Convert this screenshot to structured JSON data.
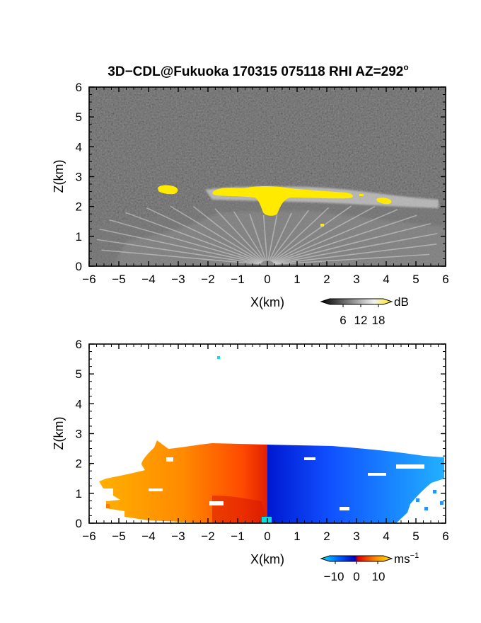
{
  "title": "3D−CDL@Fukuoka 170315 075118 RHI AZ=292",
  "title_superscript": "o",
  "chart_data": [
    {
      "type": "heatmap",
      "field": "reflectivity",
      "xlabel": "X(km)",
      "ylabel": "Z(km)",
      "xlim": [
        -6,
        6
      ],
      "ylim": [
        0,
        6
      ],
      "xticks": [
        "−6",
        "−5",
        "−4",
        "−3",
        "−2",
        "−1",
        "0",
        "1",
        "2",
        "3",
        "4",
        "5",
        "6"
      ],
      "yticks": [
        "0",
        "1",
        "2",
        "3",
        "4",
        "5",
        "6"
      ],
      "grid": false,
      "colorbar": {
        "unit": "dB",
        "ticks": [
          "6",
          "12",
          "18"
        ],
        "colors": [
          "#000000",
          "#ffffff",
          "#ffea00"
        ]
      },
      "features": [
        {
          "x": [
            -3.6,
            -3.0
          ],
          "z": [
            2.55,
            2.75
          ],
          "level": "above 18 dB"
        },
        {
          "x": [
            -1.8,
            3.0
          ],
          "z": [
            2.35,
            2.65
          ],
          "level": "above 18 dB"
        },
        {
          "x": [
            -0.3,
            0.4
          ],
          "z": [
            1.8,
            2.5
          ],
          "level": "above 18 dB"
        },
        {
          "x": [
            3.8,
            4.2
          ],
          "z": [
            2.15,
            2.35
          ],
          "level": "above 18 dB"
        }
      ]
    },
    {
      "type": "heatmap",
      "field": "radial velocity",
      "xlabel": "X(km)",
      "ylabel": "Z(km)",
      "xlim": [
        -6,
        6
      ],
      "ylim": [
        0,
        6
      ],
      "xticks": [
        "−6",
        "−5",
        "−4",
        "−3",
        "−2",
        "−1",
        "0",
        "1",
        "2",
        "3",
        "4",
        "5",
        "6"
      ],
      "yticks": [
        "0",
        "1",
        "2",
        "3",
        "4",
        "5",
        "6"
      ],
      "grid": false,
      "colorbar": {
        "unit": "ms",
        "unit_superscript": "−1",
        "ticks": [
          "−10",
          "0",
          "10"
        ],
        "colors": [
          "#00e5ff",
          "#0050ff",
          "#0000c0",
          "#e00000",
          "#ff9000",
          "#ffe000"
        ]
      },
      "features": [
        {
          "x": [
            -6.0,
            0.0
          ],
          "z": [
            0.0,
            2.7
          ],
          "velocity": "positive 0 to 10",
          "color": "orange"
        },
        {
          "x": [
            0.0,
            6.0
          ],
          "z": [
            0.0,
            2.6
          ],
          "velocity": "negative 0 to -10",
          "color": "blue"
        },
        {
          "x": [
            -1.6,
            -1.6
          ],
          "z": [
            5.5,
            5.5
          ],
          "velocity": "isolated echo",
          "color": "cyan"
        }
      ]
    }
  ]
}
